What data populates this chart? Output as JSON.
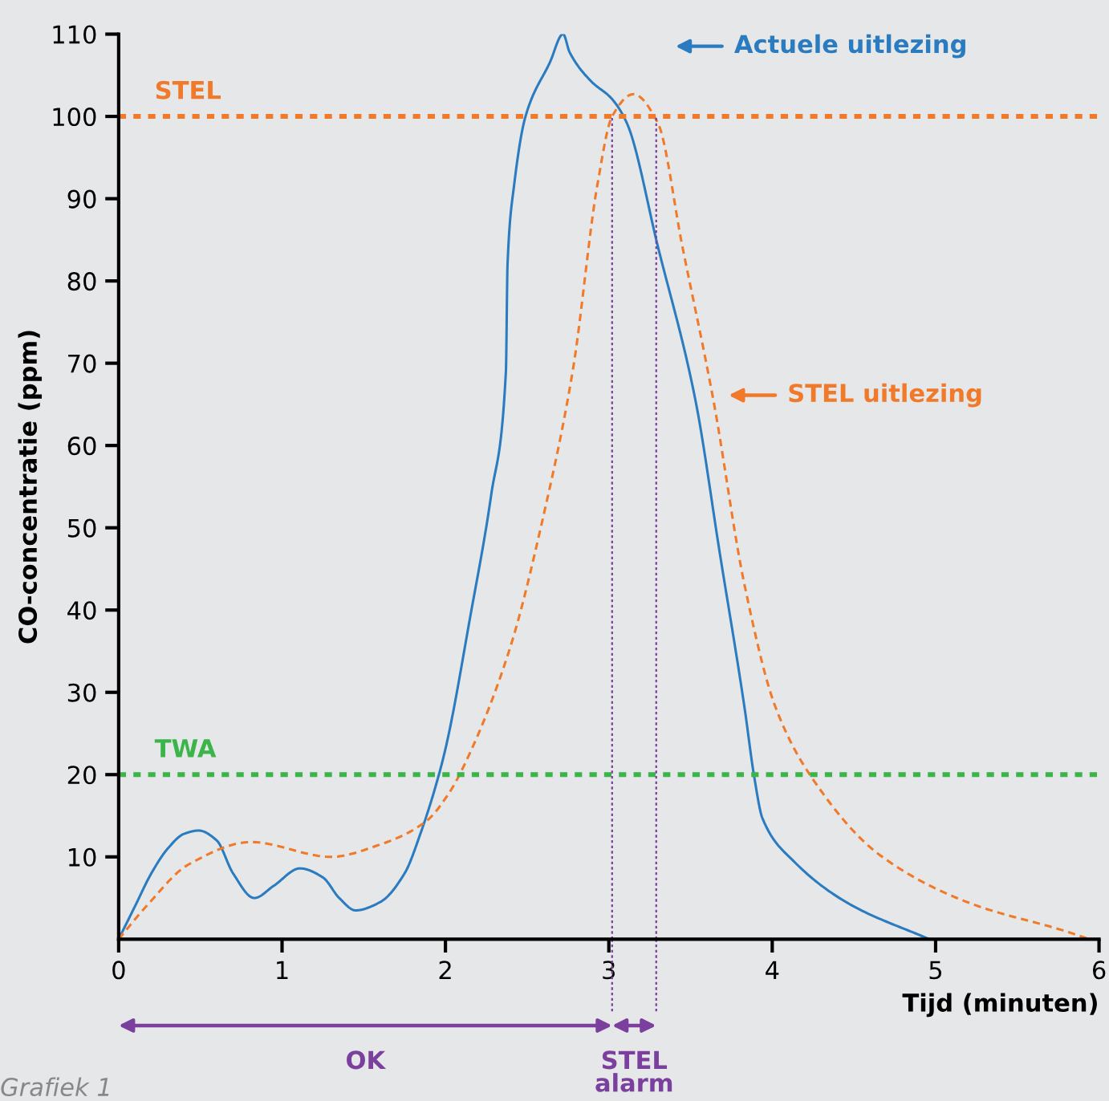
{
  "chart_data": {
    "type": "line",
    "xlabel": "Tijd (minuten)",
    "ylabel": "CO-concentratie (ppm)",
    "xlim": [
      0,
      6
    ],
    "ylim": [
      0,
      110
    ],
    "xticks": [
      0,
      1,
      2,
      3,
      4,
      5,
      6
    ],
    "yticks": [
      10,
      20,
      30,
      40,
      50,
      60,
      70,
      80,
      90,
      100,
      110
    ],
    "grid": false,
    "marker": "none",
    "series": [
      {
        "color": "#2a7bbf",
        "line_style": "solid",
        "x": [
          0,
          0.1,
          0.2,
          0.3,
          0.4,
          0.49,
          0.6,
          0.7,
          0.83,
          0.95,
          1.11,
          1.25,
          1.35,
          1.45,
          1.6,
          1.75,
          1.85,
          1.96,
          2.01,
          2.15,
          2.28,
          2.37,
          2.38,
          2.42,
          2.49,
          2.64,
          2.72,
          2.76,
          2.89,
          3.02,
          3.11,
          3.3,
          3.53,
          3.68,
          3.83,
          3.89,
          3.94,
          4.13,
          4.47,
          4.96
        ],
        "values": [
          0,
          4,
          8,
          11,
          12.8,
          13.2,
          12,
          8,
          5,
          6.5,
          8.6,
          7.5,
          5,
          3.5,
          4.5,
          8,
          13,
          20,
          24,
          39,
          54,
          69,
          82,
          91.6,
          100,
          106.6,
          110,
          107.8,
          104.3,
          102.1,
          99.2,
          84.2,
          65.5,
          46.8,
          28.2,
          19.7,
          14.7,
          9.5,
          4.3,
          0
        ]
      },
      {
        "color": "#f07a2a",
        "line_style": "dashed",
        "x": [
          0,
          0.165,
          0.43,
          0.81,
          1.3,
          1.6,
          1.88,
          2.02,
          2.14,
          2.4,
          2.59,
          2.78,
          2.93,
          3.02,
          3.15,
          3.3,
          3.45,
          3.64,
          3.83,
          4.02,
          4.24,
          4.66,
          5.22,
          5.79,
          5.94
        ],
        "values": [
          0,
          3.9,
          9.1,
          11.8,
          10,
          11.5,
          14.3,
          17.7,
          22.2,
          35.7,
          50.6,
          69.2,
          91.7,
          100,
          102.7,
          99.2,
          84.2,
          65.5,
          43.1,
          28.2,
          19.7,
          10.2,
          4.3,
          1,
          0
        ]
      }
    ],
    "ref_lines": [
      {
        "axis": "y",
        "value": 100,
        "label": "STEL",
        "color": "#f07a2a",
        "line_style": "dotted"
      },
      {
        "axis": "y",
        "value": 20,
        "label": "TWA",
        "color": "#3bb54a",
        "line_style": "dotted"
      },
      {
        "axis": "x",
        "value": 3.02,
        "color": "#7b3f9e",
        "line_style": "dotted"
      },
      {
        "axis": "x",
        "value": 3.29,
        "color": "#7b3f9e",
        "line_style": "dotted"
      }
    ],
    "annotations": [
      "Actuele uitlezing",
      "STEL uitlezing",
      "OK",
      "STEL\nalarm",
      "Grafiek 1"
    ]
  }
}
